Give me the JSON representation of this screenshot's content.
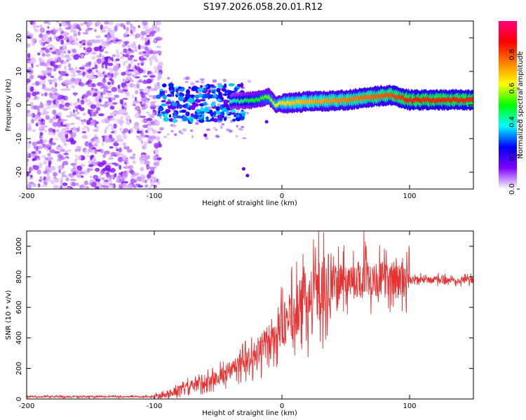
{
  "title": "S197.2026.058.20.01.R12",
  "chart_data": [
    {
      "type": "heatmap",
      "xlabel": "Height of straight line (km)",
      "ylabel": "Frequency (Hz)",
      "xlim": [
        -200,
        150
      ],
      "ylim": [
        -25,
        25
      ],
      "xticks": [
        -200,
        -100,
        0,
        100
      ],
      "yticks": [
        -20,
        -10,
        0,
        10,
        20
      ],
      "colorbar": {
        "label": "Normalized spectral amplitude",
        "range": [
          0,
          1
        ],
        "ticks": [
          "0.0",
          "0.2",
          "0.4",
          "0.6",
          "0.8"
        ],
        "colors": [
          "#ffffff",
          "#7f00ff",
          "#0000ff",
          "#00ffff",
          "#00ff00",
          "#ffff00",
          "#ff7f00",
          "#ff0000",
          "#ff0080"
        ]
      },
      "ridge": [
        {
          "x": -95,
          "y": -1,
          "v": 0.35
        },
        {
          "x": -80,
          "y": 1,
          "v": 0.4
        },
        {
          "x": -60,
          "y": 1,
          "v": 0.35
        },
        {
          "x": -40,
          "y": 1,
          "v": 0.4
        },
        {
          "x": -20,
          "y": 1.5,
          "v": 0.5
        },
        {
          "x": -10,
          "y": 2.5,
          "v": 0.55
        },
        {
          "x": -5,
          "y": 0,
          "v": 0.6
        },
        {
          "x": 0,
          "y": 0.5,
          "v": 0.65
        },
        {
          "x": 20,
          "y": 1,
          "v": 0.7
        },
        {
          "x": 50,
          "y": 1.5,
          "v": 0.75
        },
        {
          "x": 85,
          "y": 3,
          "v": 0.8
        },
        {
          "x": 100,
          "y": 1.5,
          "v": 0.85
        },
        {
          "x": 150,
          "y": 1.5,
          "v": 0.85
        }
      ]
    },
    {
      "type": "line",
      "xlabel": "Height of straight line (km)",
      "ylabel": "SNR (10 * v/v)",
      "xlim": [
        -200,
        150
      ],
      "ylim": [
        0,
        1100
      ],
      "xticks": [
        -200,
        -100,
        0,
        100
      ],
      "yticks": [
        0,
        200,
        400,
        600,
        800,
        1000
      ],
      "color": "#e83030",
      "series": [
        {
          "name": "SNR",
          "x": [
            -200,
            -120,
            -100,
            -90,
            -80,
            -70,
            -60,
            -50,
            -40,
            -30,
            -20,
            -10,
            0,
            10,
            20,
            30,
            40,
            50,
            60,
            65,
            70,
            80,
            90,
            100,
            120,
            150
          ],
          "values": [
            15,
            15,
            15,
            25,
            60,
            90,
            110,
            140,
            190,
            230,
            300,
            380,
            470,
            570,
            650,
            720,
            760,
            780,
            790,
            800,
            790,
            780,
            790,
            780,
            780,
            780
          ]
        }
      ]
    }
  ]
}
